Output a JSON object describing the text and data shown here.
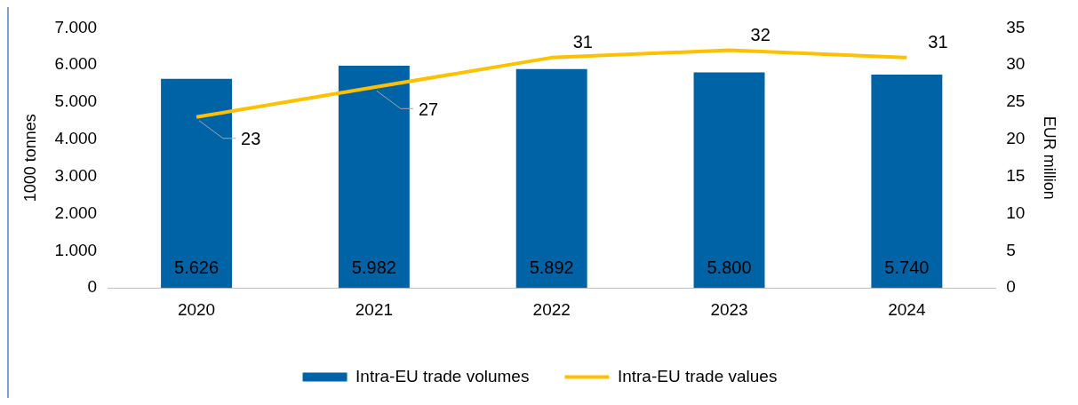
{
  "chart_data": {
    "type": "bar",
    "categories": [
      "2020",
      "2021",
      "2022",
      "2023",
      "2024"
    ],
    "series": [
      {
        "name": "Intra-EU trade volumes",
        "color": "#0063a6",
        "values": [
          5626,
          5982,
          5892,
          5800,
          5740
        ],
        "value_labels": [
          "5.626",
          "5.982",
          "5.892",
          "5.800",
          "5.740"
        ]
      },
      {
        "name": "Intra-EU trade values",
        "type": "line",
        "axis": "y2",
        "color": "#ffc000",
        "values": [
          23,
          27,
          31,
          32,
          31
        ],
        "value_labels": [
          "23",
          "27",
          "31",
          "32",
          "31"
        ]
      }
    ],
    "ylim": [
      0,
      7000
    ],
    "yticks": [
      {
        "value": 0,
        "label": "0"
      },
      {
        "value": 1000,
        "label": "1.000"
      },
      {
        "value": 2000,
        "label": "2.000"
      },
      {
        "value": 3000,
        "label": "3.000"
      },
      {
        "value": 4000,
        "label": "4.000"
      },
      {
        "value": 5000,
        "label": "5.000"
      },
      {
        "value": 6000,
        "label": "6.000"
      },
      {
        "value": 7000,
        "label": "7.000"
      }
    ],
    "y2lim": [
      0,
      35
    ],
    "y2ticks": [
      0,
      5,
      10,
      15,
      20,
      25,
      30,
      35
    ],
    "ylabel": "1000 tonnes",
    "y2label": "EUR million",
    "legend": "bottom",
    "marker": "none"
  }
}
